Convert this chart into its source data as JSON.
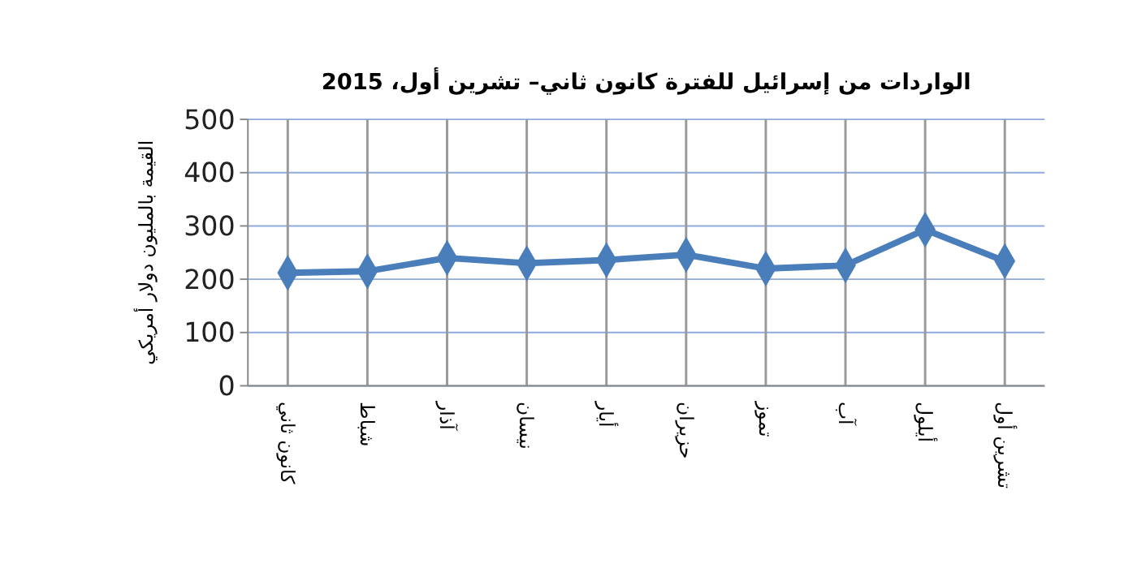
{
  "chart_data": {
    "type": "line",
    "title": "الواردات من إسرائيل للفترة كانون ثاني– تشرين أول، 2015",
    "ylabel": "القيمة بالمليون دولار أمريكي",
    "categories": [
      "كانون ثاني",
      "شباط",
      "آذار",
      "نيسان",
      "أيار",
      "حزيران",
      "تموز",
      "آب",
      "أيلول",
      "تشرين أول"
    ],
    "series": [
      {
        "color": "#4a7ebb",
        "values": [
          212,
          215,
          240,
          230,
          236,
          246,
          220,
          226,
          293,
          234
        ]
      }
    ],
    "ylim": [
      0,
      500
    ],
    "yticks": [
      0,
      100,
      200,
      300,
      400,
      500
    ],
    "grid": true,
    "marker": "diamond",
    "line_style": "solid"
  }
}
